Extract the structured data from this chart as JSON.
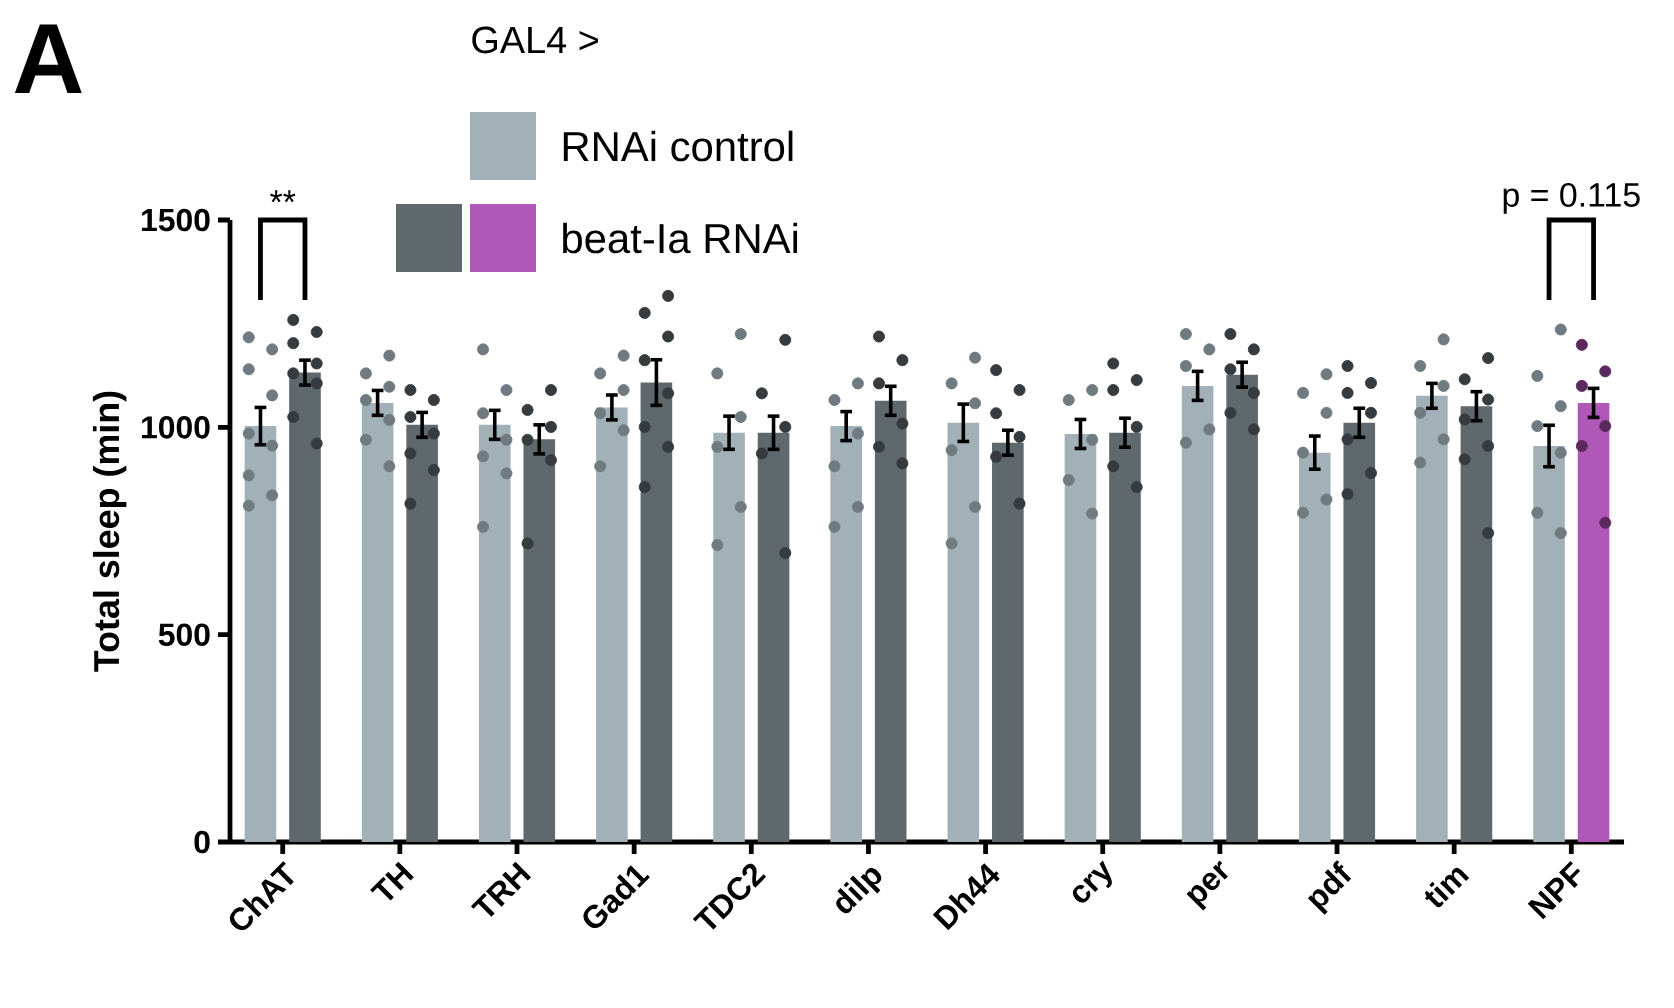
{
  "chart_data": {
    "type": "bar",
    "ylabel": "Total sleep (min)",
    "legend_title": "GAL4 >",
    "legend": "top",
    "categories": [
      "ChAT",
      "TH",
      "TRH",
      "Gad1",
      "TDC2",
      "dilp",
      "Dh44",
      "cry",
      "per",
      "pdf",
      "tim",
      "NPF"
    ],
    "ylim": [
      0,
      1500
    ],
    "yticks": [
      0,
      500,
      1000,
      1500
    ],
    "series": [
      {
        "name": "RNAi control",
        "color": "#a2b1b8",
        "values": [
          1003,
          1059,
          1006,
          1048,
          987,
          1003,
          1011,
          984,
          1100,
          939,
          1076,
          955
        ],
        "errors": [
          45,
          30,
          35,
          30,
          40,
          35,
          45,
          35,
          35,
          40,
          30,
          50
        ]
      },
      {
        "name": "beat-Ia RNAi",
        "colors": [
          "#5f686c",
          "#5f686c",
          "#5f686c",
          "#5f686c",
          "#5f686c",
          "#5f686c",
          "#5f686c",
          "#5f686c",
          "#5f686c",
          "#5f686c",
          "#5f686c",
          "#b058b8"
        ],
        "values": [
          1132,
          1006,
          971,
          1108,
          987,
          1064,
          963,
          987,
          1127,
          1011,
          1051,
          1059
        ],
        "errors": [
          30,
          30,
          35,
          55,
          40,
          35,
          30,
          35,
          30,
          35,
          35,
          35
        ]
      },
      {
        "type": "scatter",
        "marker": "circle",
        "color": "#6f7b80",
        "x": [
          "ChAT",
          "ChAT",
          "ChAT",
          "ChAT",
          "ChAT",
          "ChAT",
          "ChAT",
          "ChAT",
          "ChAT",
          "TH",
          "TH",
          "TH",
          "TH",
          "TH",
          "TH",
          "TH",
          "TRH",
          "TRH",
          "TRH",
          "TRH",
          "TRH",
          "TRH",
          "TRH",
          "Gad1",
          "Gad1",
          "Gad1",
          "Gad1",
          "Gad1",
          "Gad1",
          "TDC2",
          "TDC2",
          "TDC2",
          "TDC2",
          "TDC2",
          "TDC2",
          "dilp",
          "dilp",
          "dilp",
          "dilp",
          "dilp",
          "dilp",
          "Dh44",
          "Dh44",
          "Dh44",
          "Dh44",
          "Dh44",
          "Dh44",
          "cry",
          "cry",
          "cry",
          "cry",
          "cry",
          "per",
          "per",
          "per",
          "per",
          "per",
          "pdf",
          "pdf",
          "pdf",
          "pdf",
          "pdf",
          "pdf",
          "tim",
          "tim",
          "tim",
          "tim",
          "tim",
          "tim",
          "NPF",
          "NPF",
          "NPF",
          "NPF",
          "NPF",
          "NPF",
          "NPF"
        ],
        "values": [
          1217,
          1188,
          1140,
          1077,
          985,
          956,
          884,
          836,
          811,
          1173,
          1130,
          1098,
          1066,
          1018,
          970,
          906,
          1188,
          1090,
          1034,
          970,
          930,
          889,
          760,
          1173,
          1130,
          1090,
          1034,
          993,
          906,
          1225,
          1130,
          1025,
          953,
          808,
          716,
          1106,
          1066,
          985,
          906,
          808,
          760,
          1168,
          1106,
          1058,
          945,
          808,
          720,
          1090,
          1066,
          970,
          873,
          792,
          1225,
          1188,
          1148,
          995,
          963,
          1128,
          1083,
          1035,
          939,
          826,
          794,
          1212,
          1148,
          1100,
          1035,
          971,
          915,
          1236,
          1124,
          1051,
          1003,
          939,
          794,
          745
        ]
      },
      {
        "type": "scatter",
        "marker": "circle",
        "x": [
          "ChAT",
          "ChAT",
          "ChAT",
          "ChAT",
          "ChAT",
          "ChAT",
          "ChAT",
          "ChAT",
          "TH",
          "TH",
          "TH",
          "TH",
          "TH",
          "TH",
          "TH",
          "TRH",
          "TRH",
          "TRH",
          "TRH",
          "TRH",
          "TRH",
          "Gad1",
          "Gad1",
          "Gad1",
          "Gad1",
          "Gad1",
          "Gad1",
          "Gad1",
          "Gad1",
          "TDC2",
          "TDC2",
          "TDC2",
          "TDC2",
          "TDC2",
          "dilp",
          "dilp",
          "dilp",
          "dilp",
          "dilp",
          "dilp",
          "Dh44",
          "Dh44",
          "Dh44",
          "Dh44",
          "Dh44",
          "Dh44",
          "cry",
          "cry",
          "cry",
          "cry",
          "cry",
          "cry",
          "per",
          "per",
          "per",
          "per",
          "per",
          "per",
          "pdf",
          "pdf",
          "pdf",
          "pdf",
          "pdf",
          "pdf",
          "pdf",
          "tim",
          "tim",
          "tim",
          "tim",
          "tim",
          "tim",
          "tim",
          "NPF",
          "NPF",
          "NPF",
          "NPF",
          "NPF",
          "NPF"
        ],
        "values": [
          1259,
          1230,
          1203,
          1154,
          1130,
          1106,
          1025,
          961,
          1090,
          1066,
          1025,
          985,
          937,
          897,
          816,
          1090,
          1042,
          1001,
          970,
          921,
          720,
          1317,
          1276,
          1219,
          1162,
          1082,
          1001,
          953,
          856,
          1211,
          1082,
          1001,
          937,
          697,
          1219,
          1162,
          1106,
          1009,
          953,
          913,
          1138,
          1090,
          1034,
          977,
          929,
          816,
          1154,
          1114,
          1090,
          1001,
          906,
          856,
          1225,
          1188,
          1140,
          1083,
          1035,
          995,
          1148,
          1107,
          1083,
          1035,
          971,
          890,
          839,
          1167,
          1116,
          1067,
          1019,
          955,
          923,
          745,
          1199,
          1135,
          1100,
          1003,
          955,
          770
        ],
        "colors": [
          "#353b3e",
          "#353b3e",
          "#353b3e",
          "#353b3e",
          "#353b3e",
          "#353b3e",
          "#353b3e",
          "#353b3e",
          "#353b3e",
          "#353b3e",
          "#353b3e",
          "#353b3e",
          "#353b3e",
          "#353b3e",
          "#353b3e",
          "#353b3e",
          "#353b3e",
          "#353b3e",
          "#353b3e",
          "#353b3e",
          "#353b3e",
          "#353b3e",
          "#353b3e",
          "#353b3e",
          "#353b3e",
          "#353b3e",
          "#353b3e",
          "#353b3e",
          "#353b3e",
          "#353b3e",
          "#353b3e",
          "#353b3e",
          "#353b3e",
          "#353b3e",
          "#353b3e",
          "#353b3e",
          "#353b3e",
          "#353b3e",
          "#353b3e",
          "#353b3e",
          "#353b3e",
          "#353b3e",
          "#353b3e",
          "#353b3e",
          "#353b3e",
          "#353b3e",
          "#353b3e",
          "#353b3e",
          "#353b3e",
          "#353b3e",
          "#353b3e",
          "#353b3e",
          "#353b3e",
          "#353b3e",
          "#353b3e",
          "#353b3e",
          "#353b3e",
          "#353b3e",
          "#353b3e",
          "#353b3e",
          "#353b3e",
          "#353b3e",
          "#353b3e",
          "#353b3e",
          "#353b3e",
          "#353b3e",
          "#353b3e",
          "#353b3e",
          "#353b3e",
          "#353b3e",
          "#353b3e",
          "#353b3e",
          "#5a2a5e",
          "#5a2a5e",
          "#5a2a5e",
          "#5a2a5e",
          "#5a2a5e",
          "#5a2a5e"
        ]
      }
    ],
    "annotations": [
      "A",
      "**",
      "p = 0.115"
    ]
  }
}
